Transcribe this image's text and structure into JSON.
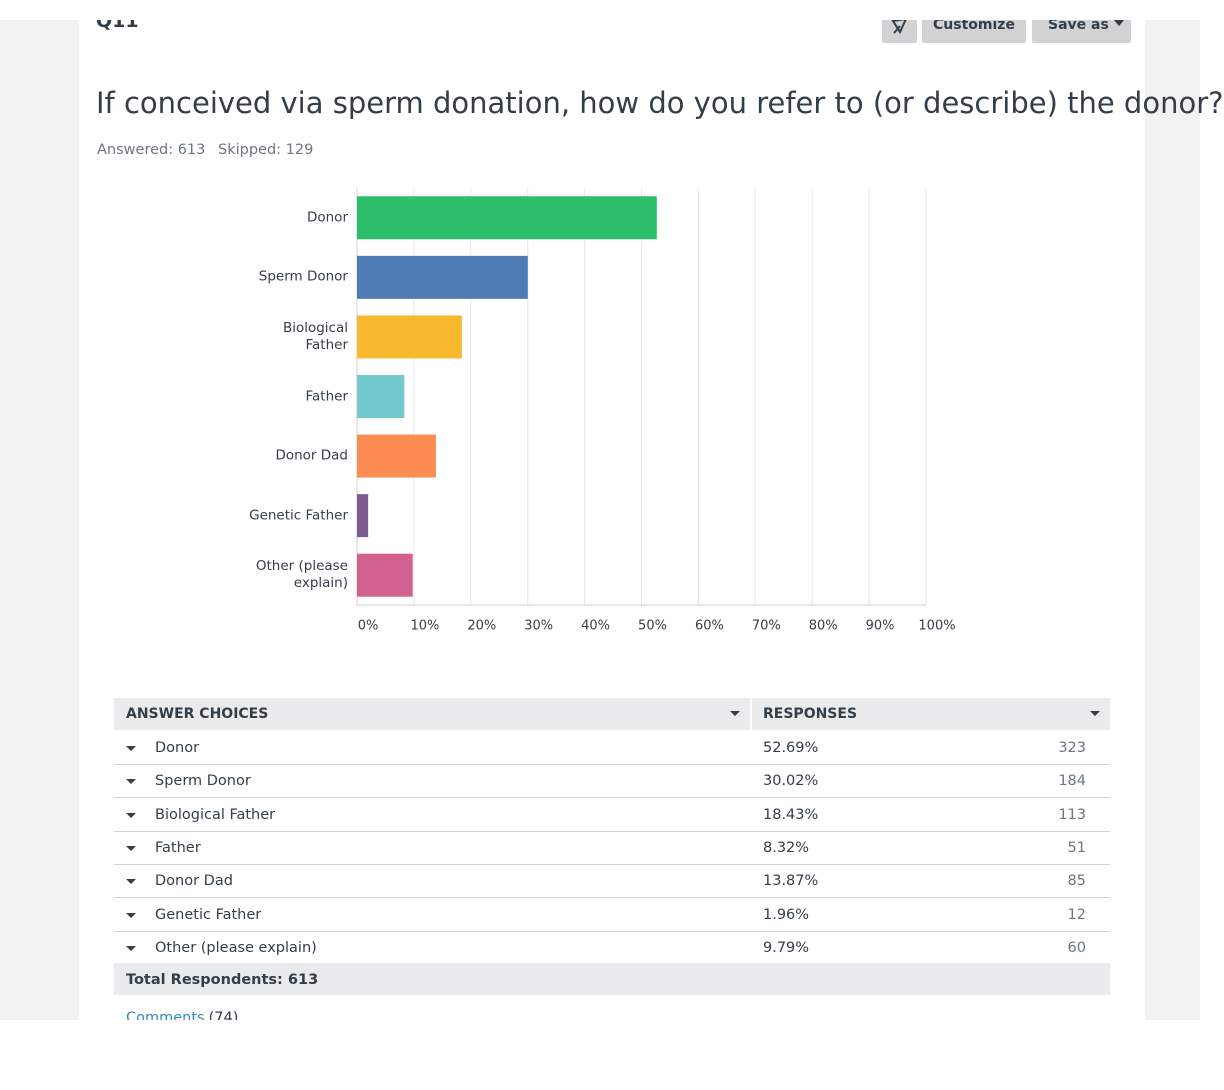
{
  "header": {
    "question_number": "Q11",
    "buttons": [
      "Customize",
      "Save as"
    ],
    "title": "If conceived via sperm donation, how do you refer to (or describe) the donor?",
    "answered": "Answered: 613",
    "skipped": "Skipped: 129"
  },
  "chart_data": {
    "type": "bar",
    "orientation": "horizontal",
    "categories": [
      "Donor",
      "Sperm Donor",
      "Biological Father",
      "Father",
      "Donor Dad",
      "Genetic Father",
      "Other (please explain)"
    ],
    "values": [
      52.69,
      30.02,
      18.43,
      8.32,
      13.87,
      1.96,
      9.79
    ],
    "colors": [
      "#2dbe6c",
      "#507cb6",
      "#f5b82e",
      "#71c8cd",
      "#fd8c52",
      "#7d5a94",
      "#d06191"
    ],
    "xlim": [
      0,
      100
    ],
    "xticks": [
      {
        "value": 0,
        "label": "0%"
      },
      {
        "value": 10,
        "label": "10%"
      },
      {
        "value": 20,
        "label": "20%"
      },
      {
        "value": 30,
        "label": "30%"
      },
      {
        "value": 40,
        "label": "40%"
      },
      {
        "value": 50,
        "label": "50%"
      },
      {
        "value": 60,
        "label": "60%"
      },
      {
        "value": 70,
        "label": "70%"
      },
      {
        "value": 80,
        "label": "80%"
      },
      {
        "value": 90,
        "label": "90%"
      },
      {
        "value": 100,
        "label": "100%"
      }
    ],
    "grid": true
  },
  "table": {
    "columns": [
      "ANSWER CHOICES",
      "RESPONSES"
    ],
    "rows": [
      [
        "Donor",
        "52.69%",
        323
      ],
      [
        "Sperm Donor",
        "30.02%",
        184
      ],
      [
        "Biological Father",
        "18.43%",
        113
      ],
      [
        "Father",
        "8.32%",
        51
      ],
      [
        "Donor Dad",
        "13.87%",
        85
      ],
      [
        "Genetic Father",
        "1.96%",
        12
      ],
      [
        "Other (please explain)",
        "9.79%",
        60
      ]
    ],
    "total": "Total Respondents: 613",
    "comments": "Comments",
    "comments_count": "(74)"
  }
}
